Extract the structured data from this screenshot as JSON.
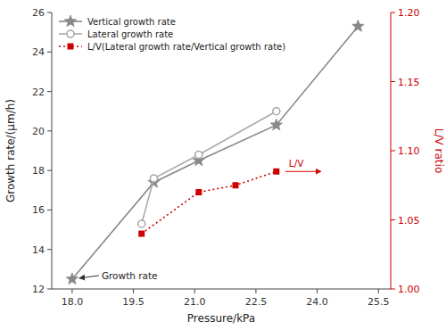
{
  "chart_data": {
    "type": "line",
    "x_label": "Pressure/kPa",
    "y_label": "Growth rate/(μm/h)",
    "y2_label": "L/V ratio",
    "xlim": [
      17.5,
      25.8
    ],
    "xticks": [
      {
        "value": 18.0,
        "label": "18.0"
      },
      19.5,
      {
        "value": 21.0,
        "label": "21.0"
      },
      22.5,
      {
        "value": 24.0,
        "label": "24.0"
      },
      25.5
    ],
    "ylim": [
      12,
      26
    ],
    "yticks": [
      12,
      14,
      16,
      18,
      20,
      22,
      24,
      26
    ],
    "y2lim": [
      1.0,
      1.2
    ],
    "y2ticks": [
      {
        "value": 1.0,
        "label": "1.00"
      },
      1.05,
      {
        "value": 1.1,
        "label": "1.10"
      },
      1.15,
      {
        "value": 1.2,
        "label": "1.20"
      }
    ],
    "series": [
      {
        "name": "Vertical growth rate",
        "x": [
          18.0,
          20.0,
          21.1,
          23.0,
          25.0
        ],
        "values": [
          12.5,
          17.4,
          18.5,
          20.3,
          25.3
        ],
        "color": "#888888",
        "marker": "star",
        "line_style": "solid"
      },
      {
        "name": "Lateral growth rate",
        "x": [
          19.7,
          20.0,
          21.1,
          23.0
        ],
        "values": [
          15.3,
          17.6,
          18.8,
          21.0
        ],
        "color": "#aaaaaa",
        "marker": "circle",
        "line_style": "solid"
      },
      {
        "name": "L/V(Lateral growth rate/Vertical growth rate)",
        "x": [
          19.7,
          21.1,
          22.0,
          23.0
        ],
        "values": [
          1.04,
          1.07,
          1.075,
          1.085
        ],
        "color": "#cc0000",
        "marker": "square",
        "line_style": "dotted",
        "axis": "y2"
      }
    ],
    "annotations": [
      "Growth rate",
      "L/V"
    ],
    "legend": "upper left",
    "grid": false
  }
}
